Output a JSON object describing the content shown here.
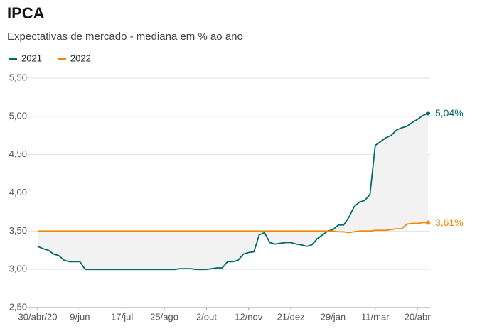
{
  "chart_data": {
    "type": "line",
    "title": "IPCA",
    "subtitle": "Expectativas de mercado - mediana em % ao ano",
    "categories": [
      "30/abr/20",
      null,
      null,
      null,
      null,
      null,
      null,
      null,
      "9/jun",
      null,
      null,
      null,
      null,
      null,
      null,
      null,
      "17/jul",
      null,
      null,
      null,
      null,
      null,
      null,
      null,
      "25/ago",
      null,
      null,
      null,
      null,
      null,
      null,
      null,
      "2/out",
      null,
      null,
      null,
      null,
      null,
      null,
      null,
      "12/nov",
      null,
      null,
      null,
      null,
      null,
      null,
      null,
      "21/dez",
      null,
      null,
      null,
      null,
      null,
      null,
      null,
      "29/jan",
      null,
      null,
      null,
      null,
      null,
      null,
      null,
      "11/mar",
      null,
      null,
      null,
      null,
      null,
      null,
      null,
      "20/abr",
      null,
      null
    ],
    "series": [
      {
        "name": "2021",
        "color": "#006b66",
        "values": [
          3.3,
          3.27,
          3.25,
          3.2,
          3.18,
          3.12,
          3.1,
          3.1,
          3.1,
          3.0,
          3.0,
          3.0,
          3.0,
          3.0,
          3.0,
          3.0,
          3.0,
          3.0,
          3.0,
          3.0,
          3.0,
          3.0,
          3.0,
          3.0,
          3.0,
          3.0,
          3.0,
          3.01,
          3.01,
          3.01,
          3.0,
          3.0,
          3.0,
          3.01,
          3.02,
          3.02,
          3.1,
          3.1,
          3.12,
          3.2,
          3.22,
          3.23,
          3.45,
          3.48,
          3.35,
          3.33,
          3.34,
          3.35,
          3.35,
          3.33,
          3.32,
          3.3,
          3.32,
          3.4,
          3.45,
          3.5,
          3.52,
          3.58,
          3.58,
          3.68,
          3.82,
          3.88,
          3.9,
          3.98,
          4.62,
          4.67,
          4.72,
          4.75,
          4.82,
          4.85,
          4.87,
          4.92,
          4.96,
          5.01,
          5.04
        ],
        "value_labels": [
          null,
          null,
          null,
          null,
          null,
          null,
          null,
          null,
          null,
          null,
          null,
          null,
          null,
          null,
          null,
          null,
          null,
          null,
          null,
          null,
          null,
          null,
          null,
          null,
          null,
          null,
          null,
          null,
          null,
          null,
          null,
          null,
          null,
          null,
          null,
          null,
          null,
          null,
          null,
          null,
          null,
          null,
          null,
          null,
          null,
          null,
          null,
          null,
          null,
          null,
          null,
          null,
          null,
          null,
          null,
          null,
          null,
          null,
          null,
          null,
          null,
          null,
          null,
          null,
          null,
          null,
          null,
          null,
          null,
          null,
          null,
          null,
          null,
          null,
          "5,04%"
        ]
      },
      {
        "name": "2022",
        "color": "#f28705",
        "values": [
          3.5,
          3.5,
          3.5,
          3.5,
          3.5,
          3.5,
          3.5,
          3.5,
          3.5,
          3.5,
          3.5,
          3.5,
          3.5,
          3.5,
          3.5,
          3.5,
          3.5,
          3.5,
          3.5,
          3.5,
          3.5,
          3.5,
          3.5,
          3.5,
          3.5,
          3.5,
          3.5,
          3.5,
          3.5,
          3.5,
          3.5,
          3.5,
          3.5,
          3.5,
          3.5,
          3.5,
          3.5,
          3.5,
          3.5,
          3.5,
          3.5,
          3.5,
          3.5,
          3.5,
          3.5,
          3.5,
          3.5,
          3.5,
          3.5,
          3.5,
          3.5,
          3.5,
          3.5,
          3.5,
          3.5,
          3.5,
          3.5,
          3.49,
          3.49,
          3.48,
          3.49,
          3.5,
          3.5,
          3.5,
          3.51,
          3.51,
          3.51,
          3.52,
          3.53,
          3.53,
          3.59,
          3.6,
          3.6,
          3.61,
          3.61
        ],
        "value_labels": [
          null,
          null,
          null,
          null,
          null,
          null,
          null,
          null,
          null,
          null,
          null,
          null,
          null,
          null,
          null,
          null,
          null,
          null,
          null,
          null,
          null,
          null,
          null,
          null,
          null,
          null,
          null,
          null,
          null,
          null,
          null,
          null,
          null,
          null,
          null,
          null,
          null,
          null,
          null,
          null,
          null,
          null,
          null,
          null,
          null,
          null,
          null,
          null,
          null,
          null,
          null,
          null,
          null,
          null,
          null,
          null,
          null,
          null,
          null,
          null,
          null,
          null,
          null,
          null,
          null,
          null,
          null,
          null,
          null,
          null,
          null,
          null,
          null,
          null,
          "3,61%"
        ]
      }
    ],
    "ylim": [
      2.5,
      5.5
    ],
    "yticks": [
      {
        "value": 2.5,
        "label": "2,50"
      },
      {
        "value": 3,
        "label": "3,00"
      },
      {
        "value": 3.5,
        "label": "3,50"
      },
      {
        "value": 4,
        "label": "4,00"
      },
      {
        "value": 4.5,
        "label": "4,50"
      },
      {
        "value": 5,
        "label": "5,00"
      },
      {
        "value": 5.5,
        "label": "5,50"
      }
    ],
    "grid": true,
    "fill_between": true
  }
}
